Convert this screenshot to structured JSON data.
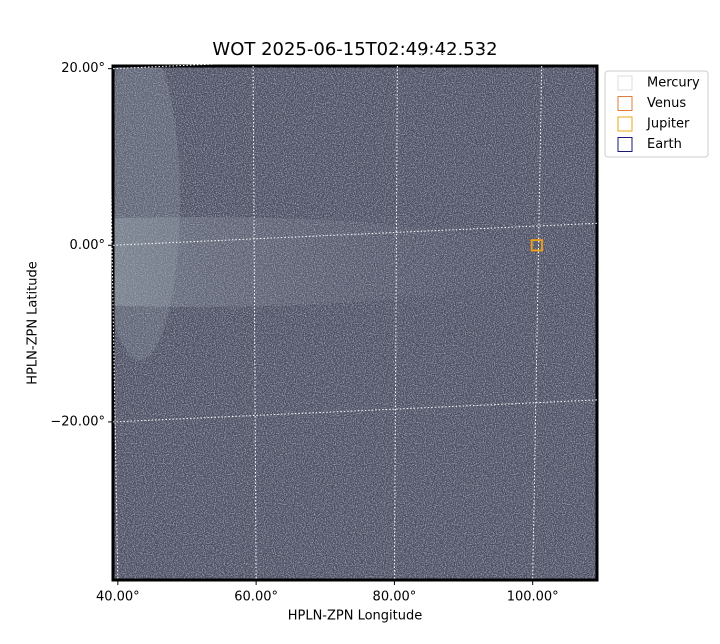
{
  "chart_data": {
    "type": "image-scatter",
    "title": "WOT 2025-06-15T02:49:42.532",
    "x_label": "HPLN-ZPN Longitude",
    "y_label": "HPLN-ZPN Latitude",
    "xlim": [
      39.3,
      109.3
    ],
    "ylim": [
      -37.9,
      20.3
    ],
    "xticks": [
      {
        "value": 40,
        "label": "40.00°"
      },
      {
        "value": 60,
        "label": "60.00°"
      },
      {
        "value": 80,
        "label": "80.00°"
      },
      {
        "value": 100,
        "label": "100.00°"
      }
    ],
    "yticks": [
      {
        "value": 20,
        "label": "20.00°"
      },
      {
        "value": 0,
        "label": "0.00°"
      },
      {
        "value": -20,
        "label": "−20.00°"
      }
    ],
    "grid": true,
    "legend": "upper right",
    "series": [
      {
        "name": "Mercury",
        "color": "#dddddd",
        "x": [
          null
        ],
        "y": [
          null
        ]
      },
      {
        "name": "Venus",
        "color": "#e07b39",
        "x": [
          100.6
        ],
        "y": [
          0.0
        ]
      },
      {
        "name": "Jupiter",
        "color": "#e6a817",
        "x": [
          100.6
        ],
        "y": [
          0.0
        ]
      },
      {
        "name": "Earth",
        "color": "#1a1a7a",
        "x": [
          null
        ],
        "y": [
          null
        ]
      }
    ]
  }
}
